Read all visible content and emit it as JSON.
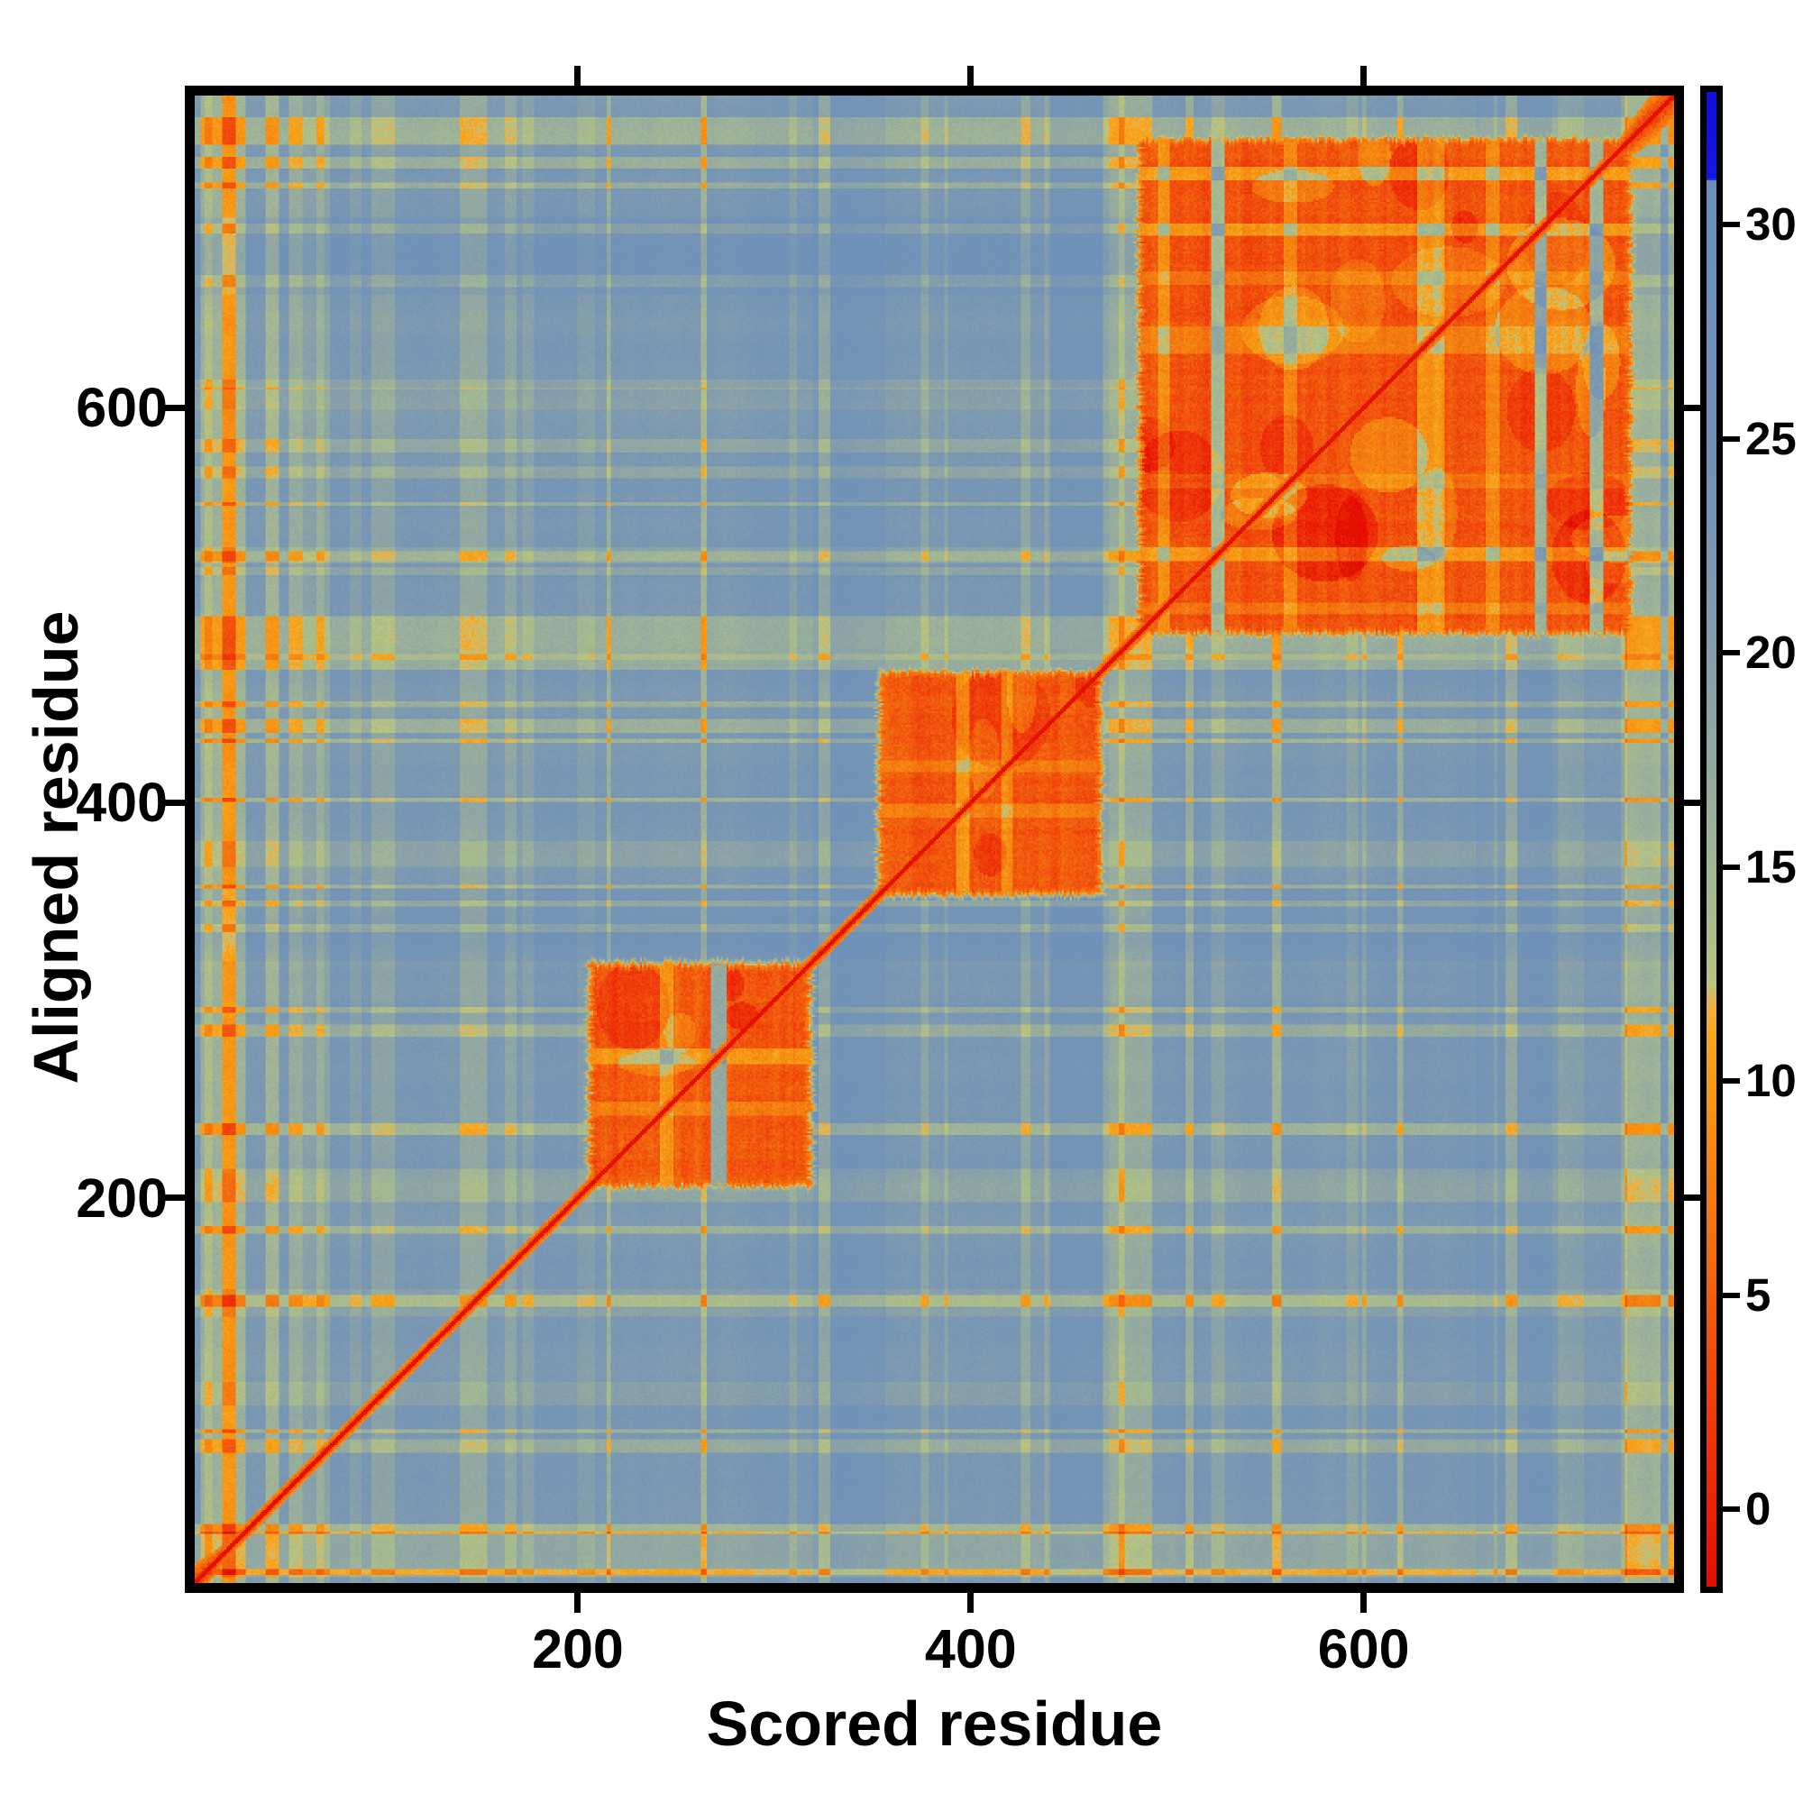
{
  "figure": {
    "background_color": "#ffffff",
    "plot_border_color": "#000000"
  },
  "chart_data": {
    "type": "heatmap",
    "title": "",
    "xlabel": "Scored residue",
    "ylabel": "Aligned residue",
    "x_ticks": [
      200,
      400,
      600
    ],
    "y_ticks": [
      200,
      400,
      600
    ],
    "x_range": [
      5,
      758
    ],
    "y_range": [
      5,
      758
    ],
    "grid": false,
    "legend_position": "colorbar-right",
    "colorbar": {
      "ticks": [
        0,
        5,
        10,
        15,
        20,
        25,
        30
      ],
      "value_top": 33.1,
      "value_bottom": -1.8,
      "cap_value": 31.06,
      "cap_color": "#1418e6"
    },
    "background_score": 23.5,
    "diagonal": {
      "from": [
        5,
        5
      ],
      "to": [
        758,
        758
      ],
      "score": -1.5,
      "core_halfwidth": 1.7,
      "fringe_halfwidth": 4.5,
      "corner_smear_halfwidth": 12
    },
    "blocks": [
      {
        "x": [
          208,
          316
        ],
        "y": [
          208,
          316
        ],
        "score": 4.0,
        "gap": [
          268,
          275
        ],
        "column_streaks": [
          {
            "range": [
              242,
              248
            ],
            "delta": 5
          }
        ]
      },
      {
        "x": [
          356,
          464
        ],
        "y": [
          356,
          464
        ],
        "score": 3.8,
        "gap": null,
        "column_streaks": [
          {
            "range": [
              393,
              399
            ],
            "delta": 5
          },
          {
            "range": [
              416,
              421
            ],
            "delta": 4.5
          }
        ]
      },
      {
        "x": [
          488,
          734
        ],
        "y": [
          488,
          734
        ],
        "score": 3.5,
        "gap": null,
        "column_streaks": [
          {
            "range": [
              496,
              501
            ],
            "delta": 5
          },
          {
            "range": [
              523,
              529
            ],
            "delta": 10
          },
          {
            "range": [
              560,
              566
            ],
            "delta": 4
          },
          {
            "range": [
              628,
              641
            ],
            "delta": 5.5
          },
          {
            "range": [
              663,
              669
            ],
            "delta": 4.5
          },
          {
            "range": [
              688,
              693
            ],
            "delta": 11
          },
          {
            "range": [
              716,
              722
            ],
            "delta": 11
          }
        ]
      }
    ],
    "background_streaks": {
      "vertical": [
        {
          "range": [
            8,
            30
          ],
          "delta": -6
        },
        {
          "range": [
            60,
            70
          ],
          "delta": -2.5
        },
        {
          "range": [
            95,
            106
          ],
          "delta": -3.5
        },
        {
          "range": [
            140,
            153
          ],
          "delta": -4.5
        },
        {
          "range": [
            200,
            208
          ],
          "delta": -2.5
        },
        {
          "range": [
            320,
            356
          ],
          "delta": 2.0
        },
        {
          "range": [
            440,
            470
          ],
          "delta": 1.6
        },
        {
          "range": [
            468,
            492
          ],
          "delta": -5
        },
        {
          "range": [
            523,
            529
          ],
          "delta": -3.5
        },
        {
          "range": [
            658,
            696
          ],
          "delta": 1.8
        },
        {
          "range": [
            700,
            712
          ],
          "delta": -2.5
        },
        {
          "range": [
            734,
            747
          ],
          "delta": -6
        }
      ],
      "horizontal": [
        {
          "range": [
            8,
            30
          ],
          "delta": -4
        },
        {
          "range": [
            95,
            106
          ],
          "delta": -2.5
        },
        {
          "range": [
            140,
            153
          ],
          "delta": -2.5
        },
        {
          "range": [
            198,
            214
          ],
          "delta": -3.5
        },
        {
          "range": [
            320,
            356
          ],
          "delta": 1.8
        },
        {
          "range": [
            368,
            380
          ],
          "delta": -2.5
        },
        {
          "range": [
            468,
            494
          ],
          "delta": -5.5
        },
        {
          "range": [
            523,
            529
          ],
          "delta": -2.5
        },
        {
          "range": [
            600,
            610
          ],
          "delta": -2
        },
        {
          "range": [
            658,
            696
          ],
          "delta": 2.0
        },
        {
          "range": [
            734,
            747
          ],
          "delta": -6
        }
      ]
    },
    "colormap_stops": [
      [
        -1.8,
        "#e30e00"
      ],
      [
        0,
        "#ec2206"
      ],
      [
        3,
        "#f0450c"
      ],
      [
        6,
        "#f36e10"
      ],
      [
        9,
        "#f68f13"
      ],
      [
        11,
        "#f7a71b"
      ],
      [
        11.7,
        "#f2ae44"
      ],
      [
        12.2,
        "#bcc47e"
      ],
      [
        13.5,
        "#acbd8a"
      ],
      [
        15,
        "#a2b794"
      ],
      [
        17,
        "#96ab9f"
      ],
      [
        19,
        "#8ba3a8"
      ],
      [
        21,
        "#809bb0"
      ],
      [
        23,
        "#7695b5"
      ],
      [
        26,
        "#7092b9"
      ],
      [
        29,
        "#6d90b9"
      ],
      [
        31,
        "#6c8fb8"
      ],
      [
        31.06,
        "#1418e6"
      ],
      [
        33.1,
        "#120edc"
      ]
    ]
  }
}
